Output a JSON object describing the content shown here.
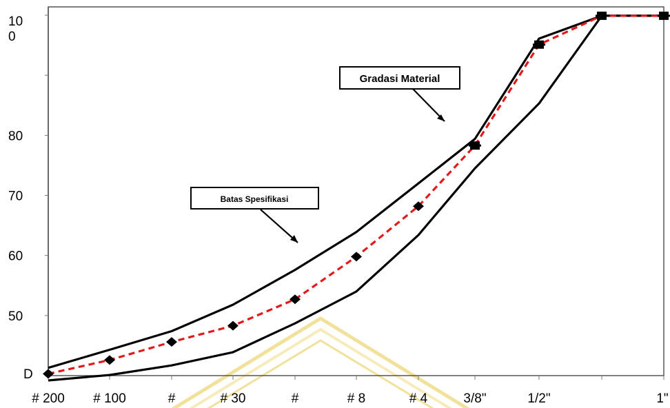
{
  "chart_data": {
    "type": "line",
    "categories": [
      "# 200",
      "# 100",
      "#",
      "# 30",
      "#",
      "# 8",
      "# 4",
      "3/8\"",
      "1/2\"",
      "",
      "1\""
    ],
    "y_ticks": [
      {
        "value": 100,
        "label": "10\n0"
      },
      {
        "value": 80,
        "label": "80"
      },
      {
        "value": 70,
        "label": "70"
      },
      {
        "value": 60,
        "label": "60"
      },
      {
        "value": 50,
        "label": "50"
      },
      {
        "value": 40,
        "label": "D"
      }
    ],
    "ylim": [
      40,
      100
    ],
    "series": [
      {
        "name": "Batas Spesifikasi",
        "role": "upper",
        "values": [
          41.3,
          44.3,
          47.4,
          51.8,
          57.6,
          63.9,
          72.0,
          79.4,
          96.1,
          99.9,
          99.9
        ]
      },
      {
        "name": "Batas Spesifikasi",
        "role": "lower",
        "values": [
          39.2,
          40.1,
          41.7,
          43.9,
          48.7,
          54.0,
          63.4,
          74.5,
          85.3,
          99.9,
          99.9
        ]
      },
      {
        "name": "Gradasi Material",
        "values": [
          40.3,
          42.6,
          45.6,
          48.3,
          52.7,
          59.8,
          68.2,
          78.3,
          95.1,
          99.9,
          99.9
        ]
      }
    ],
    "annotations": [
      {
        "text": "Gradasi Material"
      },
      {
        "text": "Batas Spesifikasi"
      }
    ],
    "colors": {
      "bounds": "#000000",
      "material": "#e31a1c",
      "marker": "#000000",
      "watermark": "#e8c94a"
    },
    "grid": false,
    "legend": "none"
  }
}
